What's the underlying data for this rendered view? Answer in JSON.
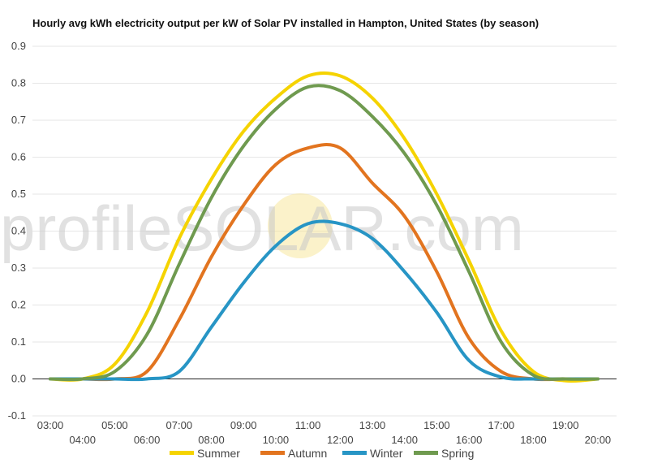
{
  "chart_data": {
    "type": "line",
    "title": "Hourly avg kWh electricity output per kW of Solar PV installed in Hampton, United States (by season)",
    "xlabel": "",
    "ylabel": "",
    "categories": [
      "03:00",
      "04:00",
      "05:00",
      "06:00",
      "07:00",
      "08:00",
      "09:00",
      "10:00",
      "11:00",
      "12:00",
      "13:00",
      "14:00",
      "15:00",
      "16:00",
      "17:00",
      "18:00",
      "19:00",
      "20:00"
    ],
    "ylim": [
      -0.1,
      0.9
    ],
    "yticks": [
      -0.1,
      0.0,
      0.1,
      0.2,
      0.3,
      0.4,
      0.5,
      0.6,
      0.7,
      0.8,
      0.9
    ],
    "ytick_labels": [
      "-0.1",
      "0.0",
      "0.1",
      "0.2",
      "0.3",
      "0.4",
      "0.5",
      "0.6",
      "0.7",
      "0.8",
      "0.9"
    ],
    "series": [
      {
        "name": "Summer",
        "color": "#f5d300",
        "values": [
          0.0,
          0.0,
          0.04,
          0.18,
          0.38,
          0.54,
          0.67,
          0.76,
          0.82,
          0.82,
          0.76,
          0.65,
          0.5,
          0.32,
          0.13,
          0.02,
          -0.005,
          0.0
        ]
      },
      {
        "name": "Autumn",
        "color": "#e2741f",
        "values": [
          0.0,
          0.0,
          0.0,
          0.02,
          0.16,
          0.33,
          0.47,
          0.58,
          0.625,
          0.625,
          0.53,
          0.44,
          0.29,
          0.11,
          0.02,
          0.0,
          0.0,
          0.0
        ]
      },
      {
        "name": "Winter",
        "color": "#2795c5",
        "values": [
          0.0,
          0.0,
          0.0,
          0.0,
          0.02,
          0.14,
          0.26,
          0.36,
          0.42,
          0.42,
          0.38,
          0.29,
          0.18,
          0.05,
          0.005,
          0.0,
          0.0,
          0.0
        ]
      },
      {
        "name": "Spring",
        "color": "#6f9a4f",
        "values": [
          0.0,
          0.0,
          0.02,
          0.12,
          0.31,
          0.49,
          0.63,
          0.73,
          0.79,
          0.78,
          0.71,
          0.61,
          0.47,
          0.29,
          0.1,
          0.01,
          0.0,
          0.0
        ]
      }
    ],
    "watermark": "profileSOLAR.com",
    "legend_position": "bottom"
  }
}
